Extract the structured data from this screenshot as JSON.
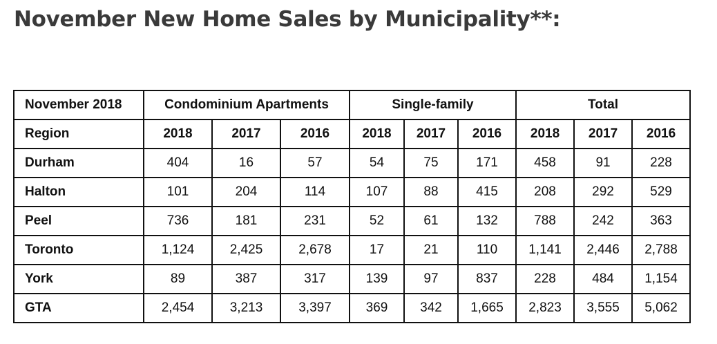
{
  "title": "November New Home Sales by Municipality**:",
  "table": {
    "group_header": {
      "label": "November 2018",
      "groups": [
        "Condominium Apartments",
        "Single-family",
        "Total"
      ]
    },
    "year_header": {
      "label": "Region",
      "years": [
        "2018",
        "2017",
        "2016",
        "2018",
        "2017",
        "2016",
        "2018",
        "2017",
        "2016"
      ]
    },
    "rows": [
      {
        "region": "Durham",
        "cells": [
          "404",
          "16",
          "57",
          "54",
          "75",
          "171",
          "458",
          "91",
          "228"
        ]
      },
      {
        "region": "Halton",
        "cells": [
          "101",
          "204",
          "114",
          "107",
          "88",
          "415",
          "208",
          "292",
          "529"
        ]
      },
      {
        "region": "Peel",
        "cells": [
          "736",
          "181",
          "231",
          "52",
          "61",
          "132",
          "788",
          "242",
          "363"
        ]
      },
      {
        "region": "Toronto",
        "cells": [
          "1,124",
          "2,425",
          "2,678",
          "17",
          "21",
          "110",
          "1,141",
          "2,446",
          "2,788"
        ]
      },
      {
        "region": "York",
        "cells": [
          "89",
          "387",
          "317",
          "139",
          "97",
          "837",
          "228",
          "484",
          "1,154"
        ]
      },
      {
        "region": "GTA",
        "cells": [
          "2,454",
          "3,213",
          "3,397",
          "369",
          "342",
          "1,665",
          "2,823",
          "3,555",
          "5,062"
        ]
      }
    ]
  }
}
